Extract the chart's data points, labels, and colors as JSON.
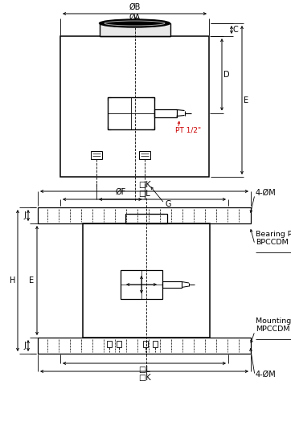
{
  "bg_color": "#ffffff",
  "line_color": "#000000",
  "dim_color": "#000000",
  "pt_color": "#cc0000",
  "labels": {
    "oB": "ØB",
    "oA": "ØA",
    "C": "C",
    "D": "D",
    "E": "E",
    "oF": "ØF",
    "G": "G",
    "PT": "PT 1/2\"",
    "K_top": "□K",
    "L_top": "□L",
    "K_bot": "□K",
    "L_bot": "□L",
    "J_top": "J",
    "J_bot": "J",
    "H": "H",
    "E2": "E",
    "fom_top": "4-ØM",
    "fom_bot": "4-ØM",
    "bearing_line1": "Bearing Plate",
    "bearing_line2": "BPCCDM",
    "mounting_line1": "Mounting Plate",
    "mounting_line2": "MPCCDM"
  }
}
